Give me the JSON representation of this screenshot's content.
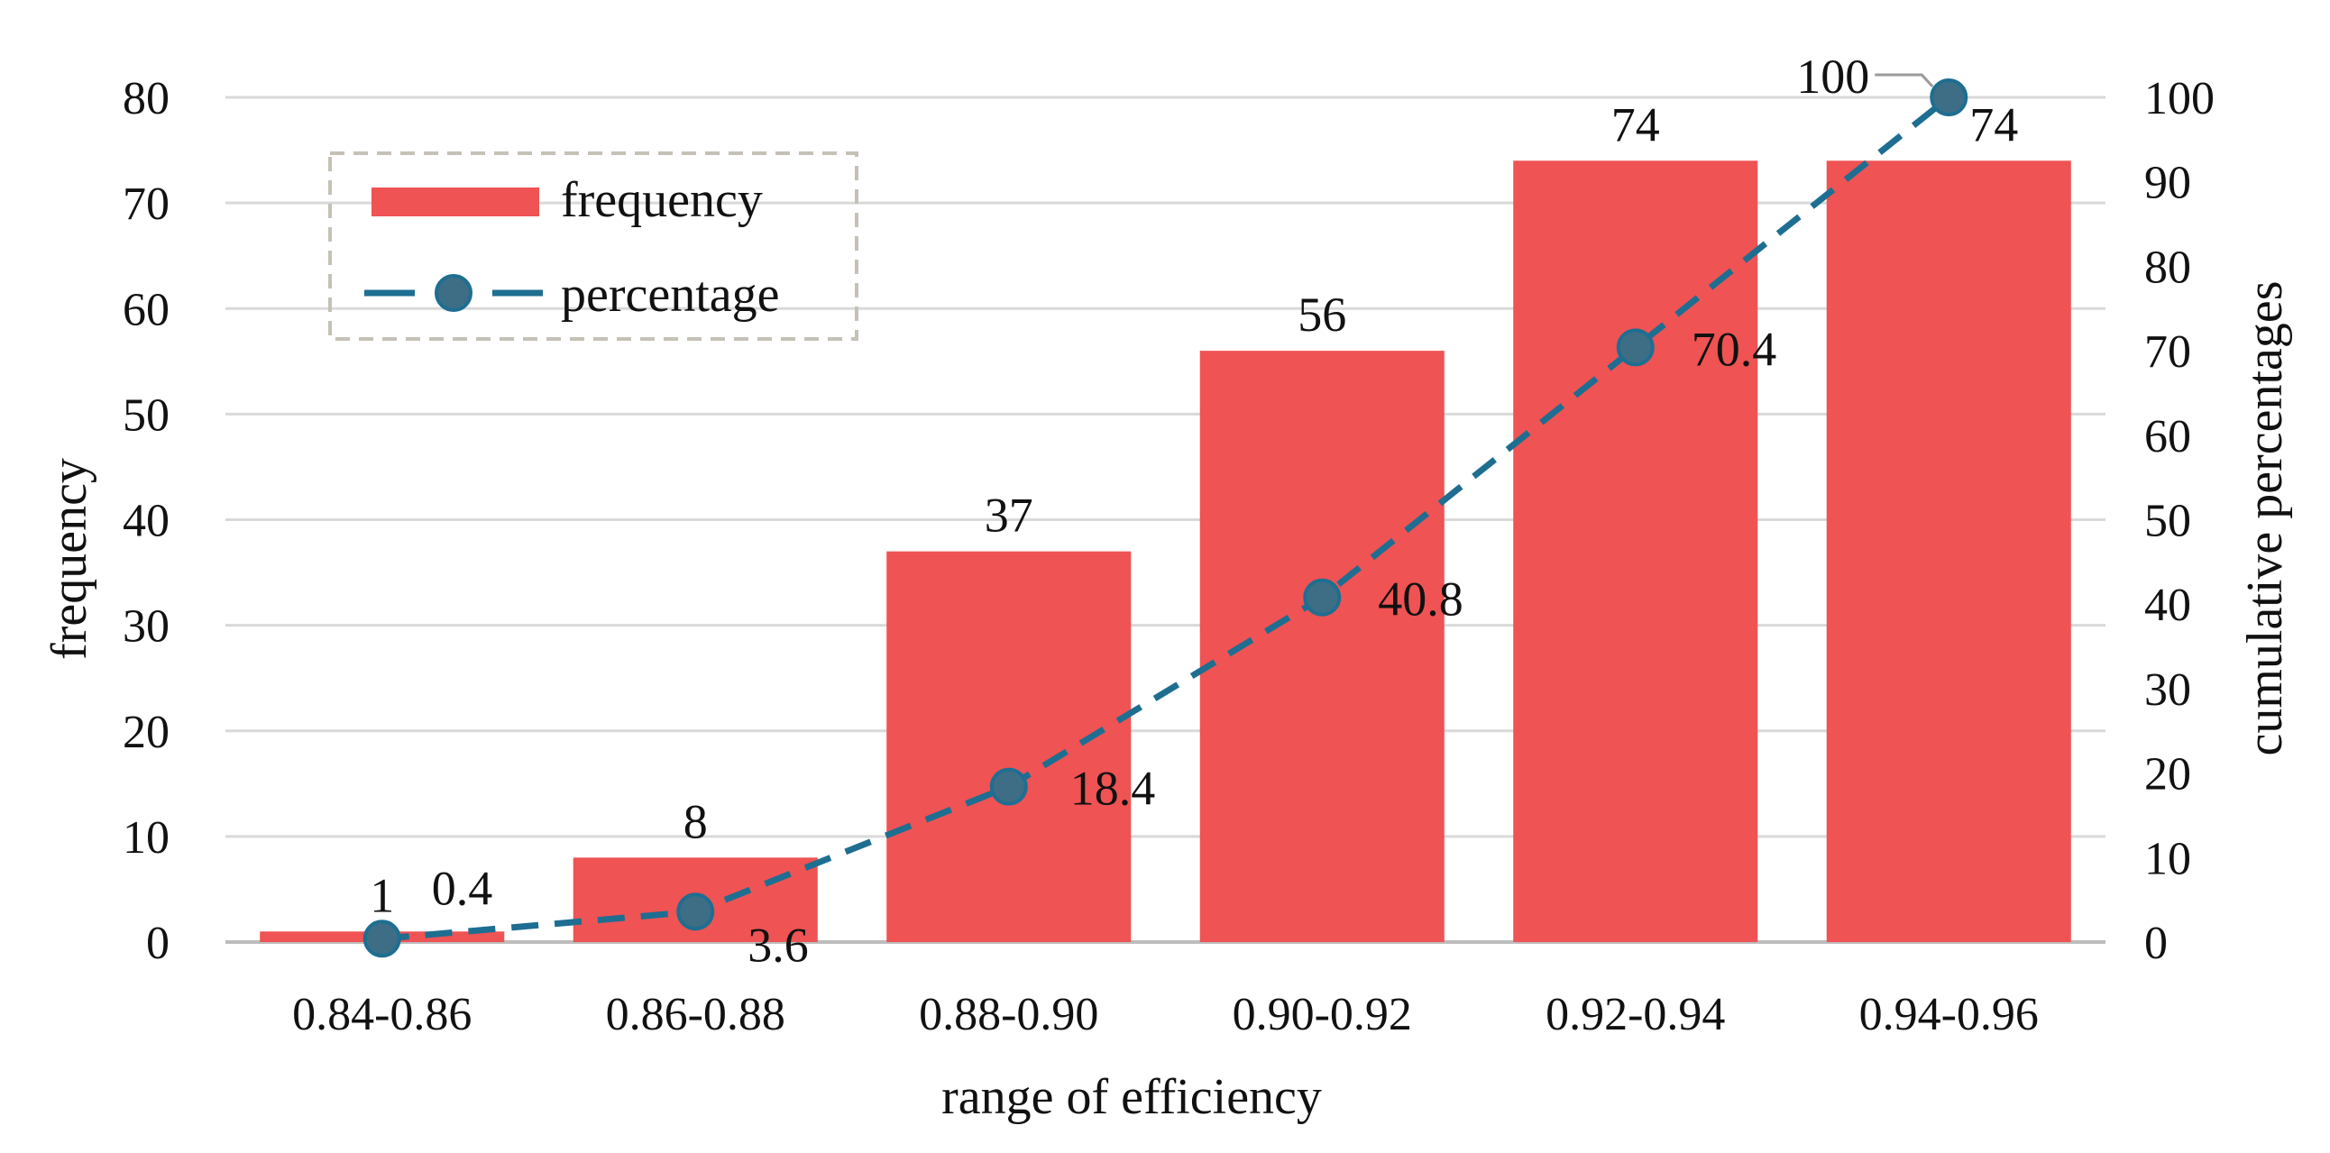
{
  "chart_data": {
    "type": "bar",
    "title": "",
    "xlabel": "range of efficiency",
    "ylabel": "frequency",
    "y2label": "cumulative  percentages",
    "categories": [
      "0.84-0.86",
      "0.86-0.88",
      "0.88-0.90",
      "0.90-0.92",
      "0.92-0.94",
      "0.94-0.96"
    ],
    "ylim": [
      0,
      80
    ],
    "yticks": [
      0,
      10,
      20,
      30,
      40,
      50,
      60,
      70,
      80
    ],
    "y2lim": [
      0,
      100
    ],
    "y2ticks": [
      0,
      10,
      20,
      30,
      40,
      50,
      60,
      70,
      80,
      90,
      100
    ],
    "grid": true,
    "legend_position": "top-left",
    "series": [
      {
        "name": "frequency",
        "type": "bar",
        "axis": "left",
        "color": "#ef5353",
        "values": [
          1,
          8,
          37,
          56,
          74,
          74
        ],
        "labels": [
          "1",
          "8",
          "37",
          "56",
          "74",
          "74"
        ]
      },
      {
        "name": "percentage",
        "type": "line",
        "axis": "right",
        "style": "dashed-with-markers",
        "color": "#1e6e91",
        "marker_color": "#3d6e86",
        "values": [
          0.4,
          3.6,
          18.4,
          40.8,
          70.4,
          100
        ],
        "labels": [
          "0.4",
          "3.6",
          "18.4",
          "40.8",
          "70.4",
          "100"
        ]
      }
    ]
  }
}
